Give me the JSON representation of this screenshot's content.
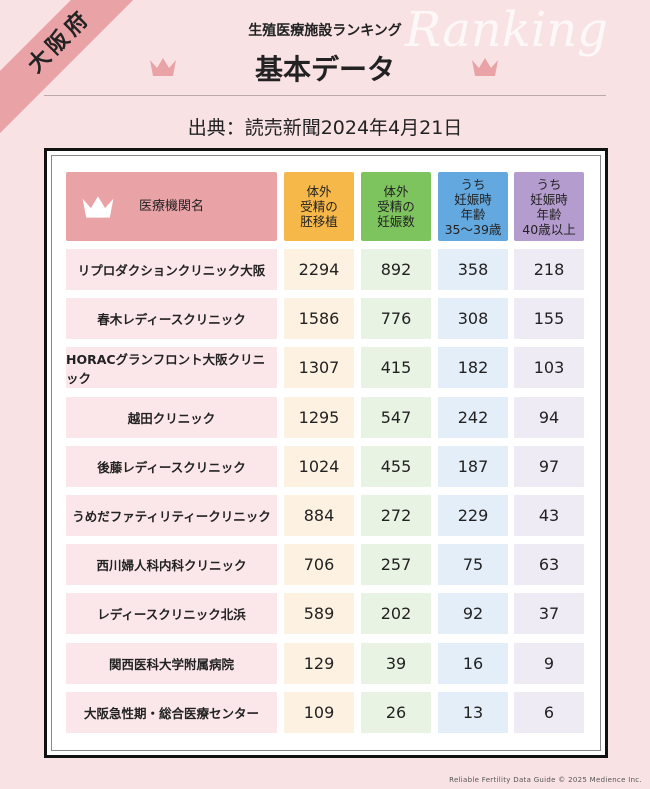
{
  "region_badge": "大阪府",
  "watermark": "Ranking",
  "subtitle": "生殖医療施設ランキング",
  "title": "基本データ",
  "source": "出典：読売新聞2024年4月21日",
  "footer": "Reliable Fertility Data Guide © 2025 Medience Inc.",
  "colors": {
    "name": "#e9a3a7",
    "c1": "#f7b84a",
    "c2": "#7dc35e",
    "c3": "#63a9e0",
    "c4": "#b59ccf"
  },
  "chart_data": {
    "type": "table",
    "columns": [
      "医療機関名",
      "体外\n受精の\n胚移植",
      "体外\n受精の\n妊娠数",
      "うち\n妊娠時\n年齢\n35～39歳",
      "うち\n妊娠時\n年齢\n40歳以上"
    ],
    "rows": [
      [
        "リプロダクションクリニック大阪",
        "2294",
        "892",
        "358",
        "218"
      ],
      [
        "春木レディースクリニック",
        "1586",
        "776",
        "308",
        "155"
      ],
      [
        "HORACグランフロント大阪クリニック",
        "1307",
        "415",
        "182",
        "103"
      ],
      [
        "越田クリニック",
        "1295",
        "547",
        "242",
        "94"
      ],
      [
        "後藤レディースクリニック",
        "1024",
        "455",
        "187",
        "97"
      ],
      [
        "うめだファティリティークリニック",
        "884",
        "272",
        "229",
        "43"
      ],
      [
        "西川婦人科内科クリニック",
        "706",
        "257",
        "75",
        "63"
      ],
      [
        "レディースクリニック北浜",
        "589",
        "202",
        "92",
        "37"
      ],
      [
        "関西医科大学附属病院",
        "129",
        "39",
        "16",
        "9"
      ],
      [
        "大阪急性期・総合医療センター",
        "109",
        "26",
        "13",
        "6"
      ]
    ]
  }
}
